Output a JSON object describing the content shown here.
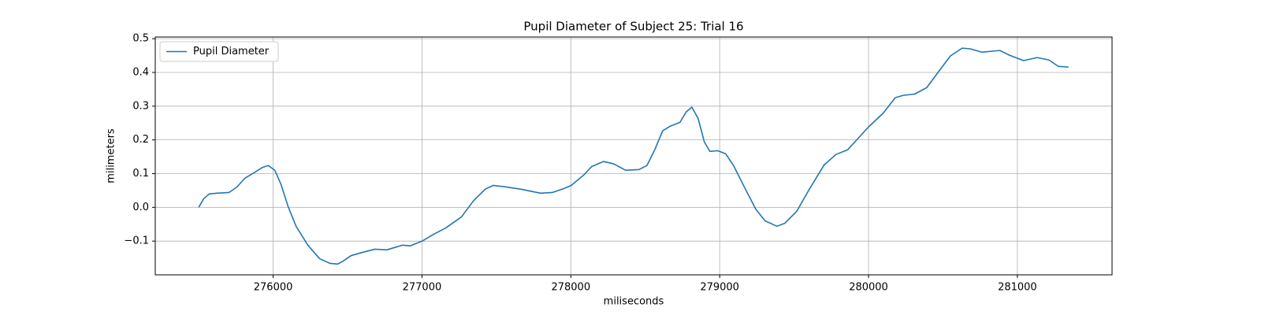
{
  "chart_data": {
    "type": "line",
    "title": "Pupil Diameter of Subject 25: Trial 16",
    "x_label": "miliseconds",
    "y_label": "milimeters",
    "x": [
      275500,
      275534,
      275571,
      275624,
      275703,
      275756,
      275809,
      275873,
      275931,
      275968,
      276011,
      276053,
      276101,
      276154,
      276233,
      276312,
      276381,
      276434,
      276471,
      276524,
      276604,
      276683,
      276763,
      276816,
      276869,
      276922,
      277001,
      277081,
      277160,
      277266,
      277345,
      277425,
      277478,
      277557,
      277663,
      277796,
      277875,
      277954,
      278002,
      278087,
      278140,
      278219,
      278288,
      278368,
      278458,
      278511,
      278564,
      278617,
      278669,
      278733,
      278775,
      278813,
      278855,
      278897,
      278934,
      278987,
      279040,
      279093,
      279173,
      279242,
      279305,
      279385,
      279438,
      279517,
      279596,
      279702,
      279782,
      279861,
      279941,
      279999,
      280100,
      280179,
      280232,
      280311,
      280391,
      280470,
      280550,
      280629,
      280682,
      280762,
      280831,
      280883,
      280947,
      281042,
      281132,
      281212,
      281275,
      281344
    ],
    "series": [
      {
        "name": "Pupil Diameter",
        "color": "#1f77b4",
        "values": [
          0.0,
          0.026,
          0.04,
          0.042,
          0.044,
          0.06,
          0.086,
          0.103,
          0.119,
          0.124,
          0.11,
          0.068,
          0.002,
          -0.056,
          -0.112,
          -0.152,
          -0.166,
          -0.168,
          -0.159,
          -0.143,
          -0.133,
          -0.124,
          -0.126,
          -0.119,
          -0.112,
          -0.114,
          -0.1,
          -0.079,
          -0.061,
          -0.028,
          0.019,
          0.054,
          0.065,
          0.061,
          0.054,
          0.042,
          0.044,
          0.056,
          0.065,
          0.096,
          0.121,
          0.136,
          0.129,
          0.11,
          0.112,
          0.124,
          0.171,
          0.227,
          0.241,
          0.252,
          0.283,
          0.297,
          0.264,
          0.194,
          0.166,
          0.168,
          0.159,
          0.124,
          0.054,
          -0.005,
          -0.04,
          -0.056,
          -0.047,
          -0.012,
          0.049,
          0.126,
          0.157,
          0.171,
          0.21,
          0.238,
          0.28,
          0.325,
          0.332,
          0.336,
          0.355,
          0.402,
          0.449,
          0.472,
          0.47,
          0.46,
          0.463,
          0.465,
          0.451,
          0.435,
          0.444,
          0.437,
          0.418,
          0.416
        ]
      }
    ],
    "xlim": [
      275208,
      281636
    ],
    "ylim": [
      -0.2,
      0.505
    ],
    "xticks": [
      276000,
      277000,
      278000,
      279000,
      280000,
      281000
    ],
    "yticks": [
      {
        "value": -0.1,
        "label": "−0.1"
      },
      {
        "value": 0,
        "label": "0.0"
      },
      0.1,
      0.2,
      0.3,
      0.4,
      0.5
    ],
    "grid": true,
    "legend": "upper left"
  }
}
